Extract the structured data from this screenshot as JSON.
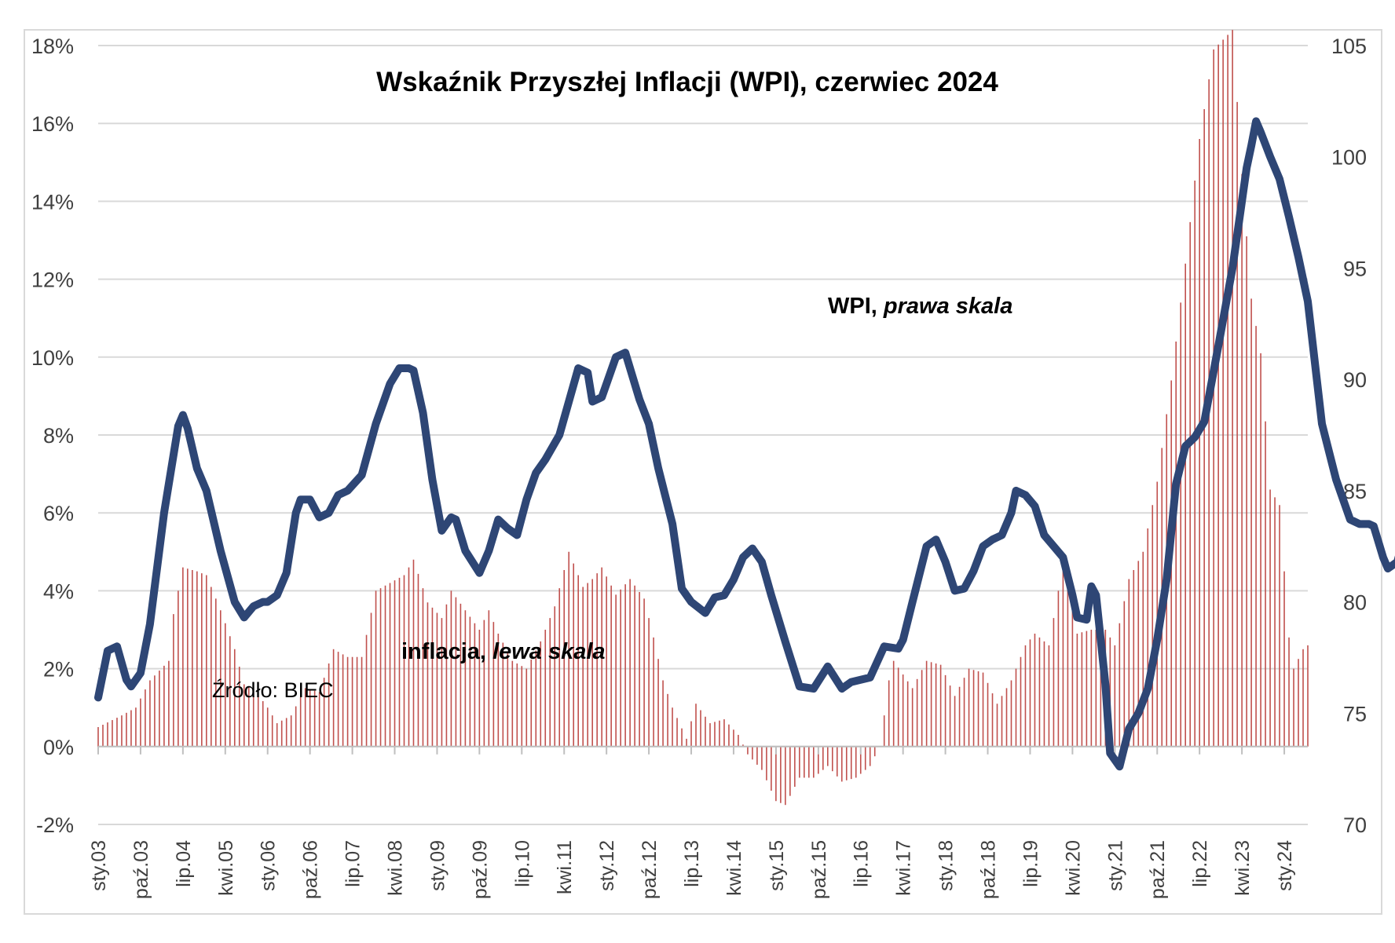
{
  "chart_data": {
    "type": "bar+line",
    "title": "Wskaźnik Przyszłej Inflacji (WPI), czerwiec 2024",
    "annotations": {
      "wpi_label_main": "WPI, ",
      "wpi_label_italic": "prawa skala",
      "inflation_label_main": "inflacja, ",
      "inflation_label_italic": "lewa skala",
      "source": "Źródło: BIEC"
    },
    "left_axis": {
      "ylim": [
        -2,
        18
      ],
      "ticks": [
        "-2%",
        "0%",
        "2%",
        "4%",
        "6%",
        "8%",
        "10%",
        "12%",
        "14%",
        "16%",
        "18%"
      ]
    },
    "right_axis": {
      "ylim": [
        70,
        105
      ],
      "ticks": [
        "70",
        "75",
        "80",
        "85",
        "90",
        "95",
        "100",
        "105"
      ]
    },
    "x_tick_labels": [
      "sty.03",
      "paź.03",
      "lip.04",
      "kwi.05",
      "sty.06",
      "paź.06",
      "lip.07",
      "kwi.08",
      "sty.09",
      "paź.09",
      "lip.10",
      "kwi.11",
      "sty.12",
      "paź.12",
      "lip.13",
      "kwi.14",
      "sty.15",
      "paź.15",
      "lip.16",
      "kwi.17",
      "sty.18",
      "paź.18",
      "lip.19",
      "kwi.20",
      "sty.21",
      "paź.21",
      "lip.22",
      "kwi.23",
      "sty.24"
    ],
    "period": {
      "start": "2003-01",
      "end": "2024-06"
    },
    "grid": true,
    "colors": {
      "wpi": "#2e4675",
      "inflation": "#c0504d",
      "grid": "#d9d9d9",
      "axis_text": "#404040"
    },
    "series": [
      {
        "name": "inflacja",
        "axis": "left",
        "kind": "bar",
        "anchors": [
          [
            "2003-01",
            0.5
          ],
          [
            "2003-06",
            0.8
          ],
          [
            "2003-09",
            1.0
          ],
          [
            "2003-12",
            1.7
          ],
          [
            "2004-04",
            2.2
          ],
          [
            "2004-05",
            3.4
          ],
          [
            "2004-07",
            4.6
          ],
          [
            "2004-10",
            4.5
          ],
          [
            "2004-12",
            4.4
          ],
          [
            "2005-03",
            3.5
          ],
          [
            "2005-06",
            2.5
          ],
          [
            "2005-08",
            1.6
          ],
          [
            "2005-10",
            1.5
          ],
          [
            "2006-01",
            1.0
          ],
          [
            "2006-03",
            0.6
          ],
          [
            "2006-06",
            0.8
          ],
          [
            "2006-09",
            1.5
          ],
          [
            "2006-12",
            1.4
          ],
          [
            "2007-03",
            2.5
          ],
          [
            "2007-06",
            2.3
          ],
          [
            "2007-09",
            2.3
          ],
          [
            "2007-12",
            4.0
          ],
          [
            "2008-03",
            4.2
          ],
          [
            "2008-06",
            4.4
          ],
          [
            "2008-08",
            4.8
          ],
          [
            "2008-11",
            3.7
          ],
          [
            "2009-02",
            3.3
          ],
          [
            "2009-04",
            4.0
          ],
          [
            "2009-07",
            3.5
          ],
          [
            "2009-10",
            3.0
          ],
          [
            "2009-12",
            3.5
          ],
          [
            "2010-02",
            2.9
          ],
          [
            "2010-05",
            2.2
          ],
          [
            "2010-08",
            2.0
          ],
          [
            "2010-11",
            2.7
          ],
          [
            "2011-02",
            3.6
          ],
          [
            "2011-05",
            5.0
          ],
          [
            "2011-08",
            4.1
          ],
          [
            "2011-10",
            4.3
          ],
          [
            "2011-12",
            4.6
          ],
          [
            "2012-03",
            3.9
          ],
          [
            "2012-06",
            4.3
          ],
          [
            "2012-09",
            3.8
          ],
          [
            "2012-11",
            2.8
          ],
          [
            "2013-01",
            1.7
          ],
          [
            "2013-03",
            1.0
          ],
          [
            "2013-06",
            0.2
          ],
          [
            "2013-08",
            1.1
          ],
          [
            "2013-11",
            0.6
          ],
          [
            "2014-02",
            0.7
          ],
          [
            "2014-05",
            0.3
          ],
          [
            "2014-07",
            -0.2
          ],
          [
            "2014-10",
            -0.6
          ],
          [
            "2015-01",
            -1.4
          ],
          [
            "2015-03",
            -1.5
          ],
          [
            "2015-06",
            -0.8
          ],
          [
            "2015-09",
            -0.8
          ],
          [
            "2015-12",
            -0.5
          ],
          [
            "2016-03",
            -0.9
          ],
          [
            "2016-06",
            -0.8
          ],
          [
            "2016-09",
            -0.5
          ],
          [
            "2016-11",
            0.0
          ],
          [
            "2016-12",
            0.8
          ],
          [
            "2017-01",
            1.7
          ],
          [
            "2017-02",
            2.2
          ],
          [
            "2017-06",
            1.5
          ],
          [
            "2017-09",
            2.2
          ],
          [
            "2017-12",
            2.1
          ],
          [
            "2018-03",
            1.3
          ],
          [
            "2018-06",
            2.0
          ],
          [
            "2018-09",
            1.9
          ],
          [
            "2018-12",
            1.1
          ],
          [
            "2019-03",
            1.7
          ],
          [
            "2019-06",
            2.6
          ],
          [
            "2019-08",
            2.9
          ],
          [
            "2019-11",
            2.6
          ],
          [
            "2020-02",
            4.7
          ],
          [
            "2020-05",
            2.9
          ],
          [
            "2020-08",
            3.0
          ],
          [
            "2020-11",
            3.0
          ],
          [
            "2021-01",
            2.6
          ],
          [
            "2021-04",
            4.3
          ],
          [
            "2021-07",
            5.0
          ],
          [
            "2021-10",
            6.8
          ],
          [
            "2022-01",
            9.4
          ],
          [
            "2022-04",
            12.4
          ],
          [
            "2022-07",
            15.6
          ],
          [
            "2022-10",
            17.9
          ],
          [
            "2023-02",
            18.4
          ],
          [
            "2023-04",
            14.7
          ],
          [
            "2023-06",
            11.5
          ],
          [
            "2023-08",
            10.1
          ],
          [
            "2023-10",
            6.6
          ],
          [
            "2023-12",
            6.2
          ],
          [
            "2024-02",
            2.8
          ],
          [
            "2024-03",
            2.0
          ],
          [
            "2024-05",
            2.5
          ],
          [
            "2024-06",
            2.6
          ]
        ]
      },
      {
        "name": "WPI",
        "axis": "right",
        "kind": "line",
        "anchors": [
          [
            "2003-01",
            75.7
          ],
          [
            "2003-03",
            77.8
          ],
          [
            "2003-05",
            78.0
          ],
          [
            "2003-07",
            76.5
          ],
          [
            "2003-08",
            76.2
          ],
          [
            "2003-10",
            76.8
          ],
          [
            "2003-12",
            79.0
          ],
          [
            "2004-03",
            84.0
          ],
          [
            "2004-06",
            87.9
          ],
          [
            "2004-07",
            88.4
          ],
          [
            "2004-08",
            87.8
          ],
          [
            "2004-10",
            86.0
          ],
          [
            "2004-12",
            85.0
          ],
          [
            "2005-03",
            82.3
          ],
          [
            "2005-06",
            80.0
          ],
          [
            "2005-08",
            79.3
          ],
          [
            "2005-10",
            79.8
          ],
          [
            "2005-12",
            80.0
          ],
          [
            "2006-01",
            80.0
          ],
          [
            "2006-03",
            80.3
          ],
          [
            "2006-05",
            81.3
          ],
          [
            "2006-07",
            84.0
          ],
          [
            "2006-08",
            84.6
          ],
          [
            "2006-10",
            84.6
          ],
          [
            "2006-12",
            83.8
          ],
          [
            "2007-02",
            84.0
          ],
          [
            "2007-04",
            84.8
          ],
          [
            "2007-06",
            85.0
          ],
          [
            "2007-09",
            85.7
          ],
          [
            "2007-12",
            88.0
          ],
          [
            "2008-03",
            89.8
          ],
          [
            "2008-05",
            90.5
          ],
          [
            "2008-07",
            90.5
          ],
          [
            "2008-08",
            90.4
          ],
          [
            "2008-10",
            88.5
          ],
          [
            "2008-12",
            85.5
          ],
          [
            "2009-02",
            83.2
          ],
          [
            "2009-04",
            83.8
          ],
          [
            "2009-05",
            83.7
          ],
          [
            "2009-07",
            82.3
          ],
          [
            "2009-10",
            81.3
          ],
          [
            "2009-12",
            82.3
          ],
          [
            "2010-02",
            83.7
          ],
          [
            "2010-04",
            83.3
          ],
          [
            "2010-06",
            83.0
          ],
          [
            "2010-08",
            84.6
          ],
          [
            "2010-10",
            85.8
          ],
          [
            "2010-12",
            86.4
          ],
          [
            "2011-03",
            87.5
          ],
          [
            "2011-05",
            89.0
          ],
          [
            "2011-07",
            90.5
          ],
          [
            "2011-09",
            90.3
          ],
          [
            "2011-10",
            89.0
          ],
          [
            "2011-12",
            89.2
          ],
          [
            "2012-03",
            91.0
          ],
          [
            "2012-05",
            91.2
          ],
          [
            "2012-07",
            89.8
          ],
          [
            "2012-08",
            89.1
          ],
          [
            "2012-10",
            88.0
          ],
          [
            "2012-12",
            86.0
          ],
          [
            "2013-03",
            83.5
          ],
          [
            "2013-05",
            80.6
          ],
          [
            "2013-07",
            80.0
          ],
          [
            "2013-10",
            79.5
          ],
          [
            "2013-12",
            80.2
          ],
          [
            "2014-02",
            80.3
          ],
          [
            "2014-04",
            81.0
          ],
          [
            "2014-06",
            82.0
          ],
          [
            "2014-08",
            82.4
          ],
          [
            "2014-10",
            81.8
          ],
          [
            "2014-12",
            80.3
          ],
          [
            "2015-03",
            78.2
          ],
          [
            "2015-06",
            76.2
          ],
          [
            "2015-09",
            76.1
          ],
          [
            "2015-12",
            77.1
          ],
          [
            "2016-03",
            76.1
          ],
          [
            "2016-05",
            76.4
          ],
          [
            "2016-07",
            76.5
          ],
          [
            "2016-09",
            76.6
          ],
          [
            "2016-12",
            78.0
          ],
          [
            "2017-03",
            77.9
          ],
          [
            "2017-04",
            78.3
          ],
          [
            "2017-06",
            80.0
          ],
          [
            "2017-09",
            82.5
          ],
          [
            "2017-11",
            82.8
          ],
          [
            "2018-01",
            81.8
          ],
          [
            "2018-03",
            80.5
          ],
          [
            "2018-05",
            80.6
          ],
          [
            "2018-07",
            81.4
          ],
          [
            "2018-09",
            82.5
          ],
          [
            "2018-11",
            82.8
          ],
          [
            "2019-01",
            83.0
          ],
          [
            "2019-03",
            84.0
          ],
          [
            "2019-04",
            85.0
          ],
          [
            "2019-06",
            84.8
          ],
          [
            "2019-08",
            84.3
          ],
          [
            "2019-10",
            83.0
          ],
          [
            "2019-12",
            82.5
          ],
          [
            "2020-02",
            82.0
          ],
          [
            "2020-04",
            80.3
          ],
          [
            "2020-05",
            79.3
          ],
          [
            "2020-07",
            79.2
          ],
          [
            "2020-08",
            80.7
          ],
          [
            "2020-09",
            80.3
          ],
          [
            "2020-11",
            76.3
          ],
          [
            "2020-12",
            73.2
          ],
          [
            "2021-02",
            72.6
          ],
          [
            "2021-04",
            74.3
          ],
          [
            "2021-06",
            75.0
          ],
          [
            "2021-08",
            76.1
          ],
          [
            "2021-10",
            78.3
          ],
          [
            "2021-12",
            81.0
          ],
          [
            "2022-02",
            85.3
          ],
          [
            "2022-04",
            87.0
          ],
          [
            "2022-06",
            87.4
          ],
          [
            "2022-08",
            88.1
          ],
          [
            "2022-11",
            91.5
          ],
          [
            "2023-02",
            95.0
          ],
          [
            "2023-05",
            99.5
          ],
          [
            "2023-06",
            100.5
          ],
          [
            "2023-07",
            101.6
          ],
          [
            "2023-08",
            101.1
          ],
          [
            "2023-10",
            100.0
          ],
          [
            "2023-12",
            99.0
          ],
          [
            "2024-02",
            97.3
          ],
          [
            "2024-04",
            95.5
          ],
          [
            "2024-06",
            93.5
          ],
          [
            "2024-09",
            88.0
          ],
          [
            "2024-12",
            85.5
          ],
          [
            "2025-03",
            83.7
          ],
          [
            "2025-05",
            83.5
          ],
          [
            "2025-07",
            83.5
          ],
          [
            "2025-08",
            83.4
          ],
          [
            "2025-10",
            82.0
          ],
          [
            "2025-11",
            81.5
          ],
          [
            "2026-01",
            81.8
          ],
          [
            "2026-03",
            83.3
          ],
          [
            "2026-05",
            83.2
          ]
        ]
      }
    ]
  }
}
